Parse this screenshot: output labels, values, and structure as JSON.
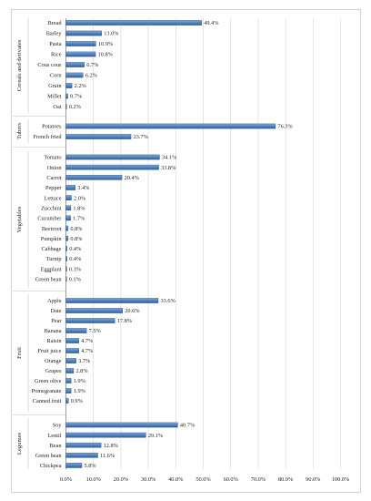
{
  "chart_data": {
    "type": "bar",
    "orientation": "horizontal",
    "grid": true,
    "xlim": [
      0,
      100
    ],
    "xticks": [
      "0.0%",
      "10.0%",
      "20.0%",
      "30.0%",
      "40.0%",
      "50.0%",
      "60.0%",
      "70.0%",
      "80.0%",
      "90.0%",
      "100.0%"
    ],
    "bar_color": "#4f81bd",
    "groups": [
      {
        "name": "Cereals and derivates",
        "items": [
          {
            "label": "Bread",
            "value": 49.4,
            "value_label": "49.4%"
          },
          {
            "label": "Barley",
            "value": 13.0,
            "value_label": "13.0%"
          },
          {
            "label": "Pasta",
            "value": 10.9,
            "value_label": "10.9%"
          },
          {
            "label": "Rice",
            "value": 10.8,
            "value_label": "10.8%"
          },
          {
            "label": "Cous cous",
            "value": 6.7,
            "value_label": "6.7%"
          },
          {
            "label": "Corn",
            "value": 6.2,
            "value_label": "6.2%"
          },
          {
            "label": "Grain",
            "value": 2.2,
            "value_label": "2.2%"
          },
          {
            "label": "Millet",
            "value": 0.7,
            "value_label": "0.7%"
          },
          {
            "label": "Oat",
            "value": 0.2,
            "value_label": "0.2%"
          }
        ]
      },
      {
        "name": "Tubers",
        "items": [
          {
            "label": "Potatoes",
            "value": 76.3,
            "value_label": "76.3%"
          },
          {
            "label": "French fried",
            "value": 23.7,
            "value_label": "23.7%"
          }
        ]
      },
      {
        "name": "Vegetables",
        "items": [
          {
            "label": "Tomato",
            "value": 34.1,
            "value_label": "34.1%"
          },
          {
            "label": "Onion",
            "value": 33.8,
            "value_label": "33.8%"
          },
          {
            "label": "Carrot",
            "value": 20.4,
            "value_label": "20.4%"
          },
          {
            "label": "Pepper",
            "value": 3.4,
            "value_label": "3.4%"
          },
          {
            "label": "Lettuce",
            "value": 2.0,
            "value_label": "2.0%"
          },
          {
            "label": "Zucchini",
            "value": 1.8,
            "value_label": "1.8%"
          },
          {
            "label": "Cucumber",
            "value": 1.7,
            "value_label": "1.7%"
          },
          {
            "label": "Beetroot",
            "value": 0.8,
            "value_label": "0.8%"
          },
          {
            "label": "Pumpkin",
            "value": 0.8,
            "value_label": "0.8%"
          },
          {
            "label": "Cabbage",
            "value": 0.4,
            "value_label": "0.4%"
          },
          {
            "label": "Turnip",
            "value": 0.4,
            "value_label": "0.4%"
          },
          {
            "label": "Eggplant",
            "value": 0.3,
            "value_label": "0.3%"
          },
          {
            "label": "Green bean",
            "value": 0.1,
            "value_label": "0.1%"
          }
        ]
      },
      {
        "name": "Fruit",
        "items": [
          {
            "label": "Apple",
            "value": 33.6,
            "value_label": "33.6%"
          },
          {
            "label": "Date",
            "value": 20.6,
            "value_label": "20.6%"
          },
          {
            "label": "Pear",
            "value": 17.8,
            "value_label": "17.8%"
          },
          {
            "label": "Banana",
            "value": 7.5,
            "value_label": "7.5%"
          },
          {
            "label": "Raisin",
            "value": 4.7,
            "value_label": "4.7%"
          },
          {
            "label": "Fruit juice",
            "value": 4.7,
            "value_label": "4.7%"
          },
          {
            "label": "Orange",
            "value": 3.7,
            "value_label": "3.7%"
          },
          {
            "label": "Grapes",
            "value": 2.8,
            "value_label": "2.8%"
          },
          {
            "label": "Green olive",
            "value": 1.9,
            "value_label": "1.9%"
          },
          {
            "label": "Pomegranate",
            "value": 1.9,
            "value_label": "1.9%"
          },
          {
            "label": "Canned fruit",
            "value": 0.9,
            "value_label": "0.9%"
          }
        ]
      },
      {
        "name": "Legumes",
        "items": [
          {
            "label": "Soy",
            "value": 40.7,
            "value_label": "40.7%"
          },
          {
            "label": "Lentil",
            "value": 29.1,
            "value_label": "29.1%"
          },
          {
            "label": "Bean",
            "value": 12.8,
            "value_label": "12.8%"
          },
          {
            "label": "Green bean",
            "value": 11.6,
            "value_label": "11.6%"
          },
          {
            "label": "Chickpea",
            "value": 5.8,
            "value_label": "5.8%"
          }
        ]
      }
    ]
  }
}
